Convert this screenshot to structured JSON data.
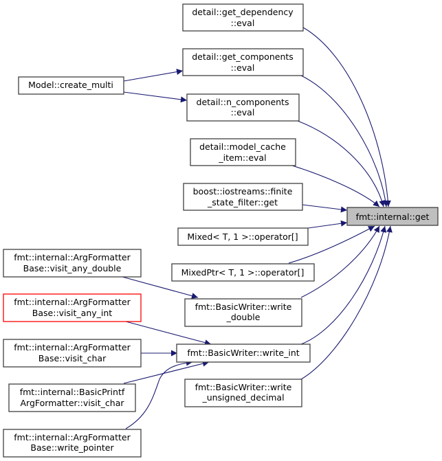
{
  "graph": {
    "target": {
      "label": "fmt::internal::get"
    },
    "callers": [
      {
        "lines": [
          "detail::get_dependency",
          "::eval"
        ]
      },
      {
        "lines": [
          "detail::get_components",
          "::eval"
        ]
      },
      {
        "lines": [
          "detail::n_components",
          "::eval"
        ]
      },
      {
        "lines": [
          "detail::model_cache",
          "_item::eval"
        ]
      },
      {
        "lines": [
          "boost::iostreams::finite",
          "_state_filter::get"
        ]
      },
      {
        "lines": [
          "Mixed< T, 1 >::operator[]"
        ]
      },
      {
        "lines": [
          "MixedPtr< T, 1 >::operator[]"
        ]
      },
      {
        "lines": [
          "fmt::BasicWriter::write",
          "_double"
        ]
      },
      {
        "lines": [
          "fmt::BasicWriter::write_int"
        ]
      },
      {
        "lines": [
          "fmt::BasicWriter::write",
          "_unsigned_decimal"
        ]
      }
    ],
    "second_level": [
      {
        "lines": [
          "Model::create_multi"
        ]
      },
      {
        "lines": [
          "fmt::internal::ArgFormatter",
          "Base::visit_any_double"
        ]
      },
      {
        "lines": [
          "fmt::internal::ArgFormatter",
          "Base::visit_any_int"
        ],
        "highlighted": true
      },
      {
        "lines": [
          "fmt::internal::ArgFormatter",
          "Base::visit_char"
        ]
      },
      {
        "lines": [
          "fmt::internal::BasicPrintf",
          "ArgFormatter::visit_char"
        ]
      },
      {
        "lines": [
          "fmt::internal::ArgFormatter",
          "Base::write_pointer"
        ]
      }
    ],
    "colors": {
      "edge": "#191970",
      "border": "#404040",
      "highlight_border": "#ff0000",
      "target_fill": "#bfbfbf"
    }
  }
}
